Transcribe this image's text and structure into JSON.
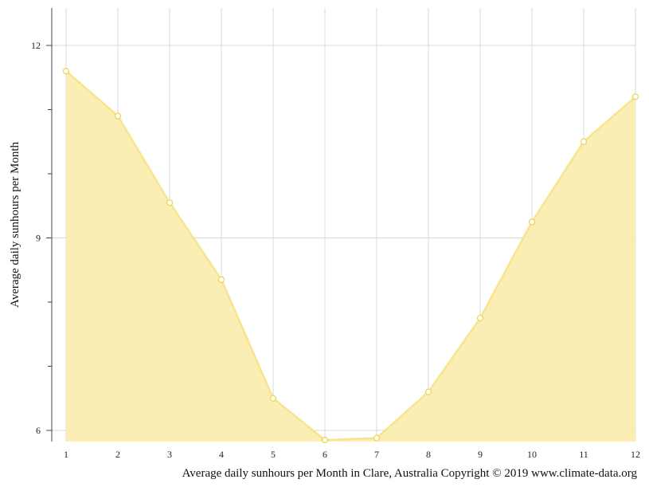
{
  "chart_data": {
    "type": "area",
    "title": "Average daily sunhours per Month in Clare, Australia Copyright © 2019 www.climate-data.org",
    "xlabel": "",
    "ylabel": "Average daily sunhours per Month",
    "x": [
      1,
      2,
      3,
      4,
      5,
      6,
      7,
      8,
      9,
      10,
      11,
      12
    ],
    "values": [
      11.6,
      10.9,
      9.55,
      8.35,
      6.5,
      5.85,
      5.88,
      6.6,
      7.75,
      9.25,
      10.5,
      11.2
    ],
    "xlim": [
      1,
      12
    ],
    "ylim": [
      5.85,
      12.6
    ],
    "yticks": [
      6,
      9,
      12
    ],
    "grid": true,
    "colors": {
      "fill": "#faedb0",
      "line": "#f8e48a",
      "marker": "#f0d45a",
      "grid": "#d9d9d9",
      "axis": "#444444"
    }
  }
}
